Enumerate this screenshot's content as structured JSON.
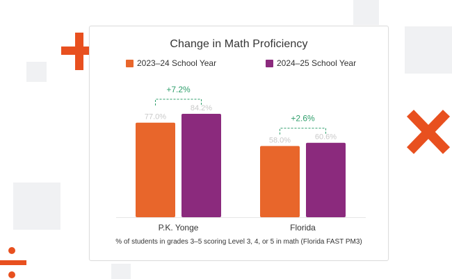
{
  "decorations": {
    "plus_icon": "plus-icon",
    "times_icon": "times-icon",
    "divide_icon": "divide-icon",
    "accent_color": "#e8501f"
  },
  "chart_data": {
    "type": "bar",
    "title": "Change in Math Proficiency",
    "categories": [
      "P.K. Yonge",
      "Florida"
    ],
    "series": [
      {
        "name": "2023–24 School Year",
        "color": "#e8662b",
        "values": [
          77.0,
          58.0
        ],
        "labels": [
          "77.0%",
          "58.0%"
        ]
      },
      {
        "name": "2024–25 School Year",
        "color": "#8b2a7d",
        "values": [
          84.2,
          60.6
        ],
        "labels": [
          "84.2%",
          "60.6%"
        ]
      }
    ],
    "changes": [
      "+7.2%",
      "+2.6%"
    ],
    "change_color": "#2e9e6b",
    "value_label_color": "#c9c9c9",
    "xlabel": "",
    "ylabel": "",
    "ylim": [
      0,
      100
    ],
    "grid": false,
    "legend_position": "top",
    "caption": "% of students in grades 3–5 scoring Level 3, 4, or 5 in math (Florida FAST PM3)"
  }
}
